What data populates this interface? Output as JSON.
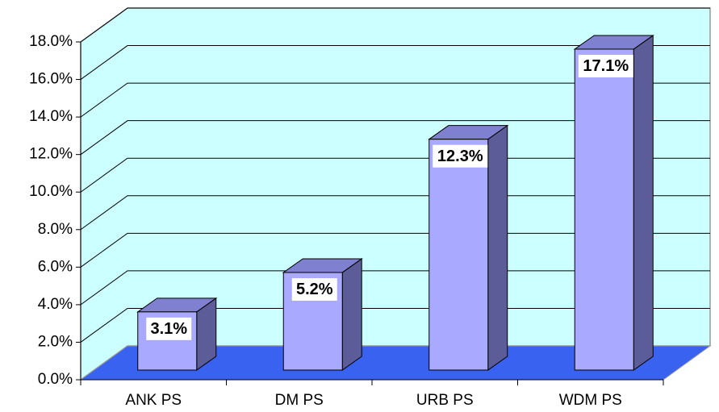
{
  "chart_data": {
    "type": "bar3d",
    "categories": [
      "ANK PS",
      "DM PS",
      "URB PS",
      "WDM PS"
    ],
    "values": [
      3.1,
      5.2,
      12.3,
      17.1
    ],
    "value_labels": [
      "3.1%",
      "5.2%",
      "12.3%",
      "17.1%"
    ],
    "color": "#a9a9ff",
    "ylim": [
      0,
      18
    ],
    "yticks": [
      {
        "value": 0,
        "label": "0.0%"
      },
      {
        "value": 2,
        "label": "2.0%"
      },
      {
        "value": 4,
        "label": "4.0%"
      },
      {
        "value": 6,
        "label": "6.0%"
      },
      {
        "value": 8,
        "label": "8.0%"
      },
      {
        "value": 10,
        "label": "10.0%"
      },
      {
        "value": 12,
        "label": "12.0%"
      },
      {
        "value": 14,
        "label": "14.0%"
      },
      {
        "value": 16,
        "label": "16.0%"
      },
      {
        "value": 18,
        "label": "18.0%"
      }
    ],
    "grid": true
  }
}
